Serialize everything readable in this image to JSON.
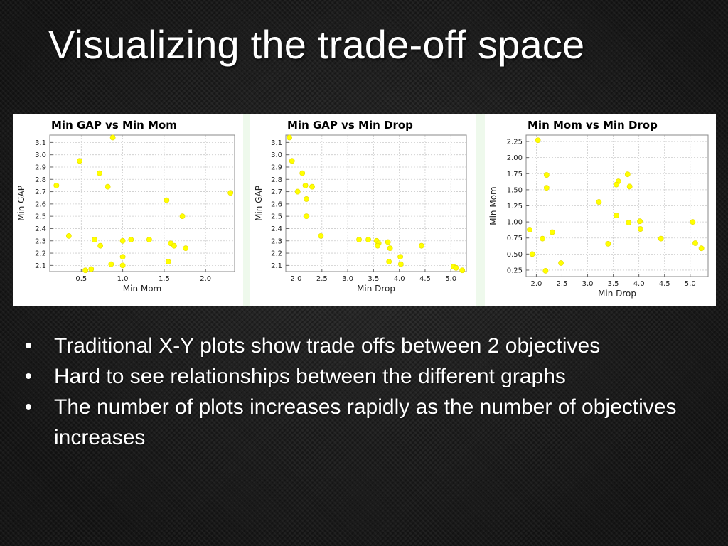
{
  "slide": {
    "title": "Visualizing the trade-off space",
    "bullet_char": "•",
    "bullets": [
      "Traditional X-Y plots show trade offs between 2 objectives",
      "Hard to see relationships between the different graphs",
      "The number of plots increases rapidly as the number of objectives increases"
    ]
  },
  "colors": {
    "background": "#1b1b1b",
    "text": "#ffffff",
    "point": "#ffff00",
    "grid": "#cccccc"
  },
  "chart_data": [
    {
      "type": "scatter",
      "title": "Min GAP vs Min Mom",
      "xlabel": "Min Mom",
      "ylabel": "Min GAP",
      "xlim": [
        0.12,
        2.35
      ],
      "ylim": [
        2.05,
        3.16
      ],
      "xticks": [
        0.5,
        1.0,
        1.5,
        2.0
      ],
      "xtick_labels": [
        "0.5",
        "1.0",
        "1.5",
        "2.0"
      ],
      "yticks": [
        2.1,
        2.2,
        2.3,
        2.4,
        2.5,
        2.6,
        2.7,
        2.8,
        2.9,
        3.0,
        3.1
      ],
      "ytick_labels": [
        "2.1",
        "2.2",
        "2.3",
        "2.4",
        "2.5",
        "2.6",
        "2.7",
        "2.8",
        "2.9",
        "3.0",
        "3.1"
      ],
      "grid": true,
      "x": [
        0.88,
        0.48,
        0.72,
        0.2,
        0.82,
        0.35,
        0.66,
        0.73,
        1.0,
        1.1,
        1.32,
        1.58,
        1.62,
        1.76,
        1.55,
        0.86,
        1.0,
        0.55,
        0.62,
        1.0,
        1.72,
        1.53,
        2.3
      ],
      "y": [
        3.14,
        2.95,
        2.85,
        2.75,
        2.74,
        2.34,
        2.31,
        2.26,
        2.3,
        2.31,
        2.31,
        2.28,
        2.26,
        2.24,
        2.13,
        2.11,
        2.1,
        2.06,
        2.07,
        2.17,
        2.5,
        2.63,
        2.69
      ]
    },
    {
      "type": "scatter",
      "title": "Min GAP vs Min Drop",
      "xlabel": "Min Drop",
      "ylabel": "Min GAP",
      "xlim": [
        1.8,
        5.3
      ],
      "ylim": [
        2.05,
        3.16
      ],
      "xticks": [
        2.0,
        2.5,
        3.0,
        3.5,
        4.0,
        4.5,
        5.0
      ],
      "xtick_labels": [
        "2.0",
        "2.5",
        "3.0",
        "3.5",
        "4.0",
        "4.5",
        "5.0"
      ],
      "yticks": [
        2.1,
        2.2,
        2.3,
        2.4,
        2.5,
        2.6,
        2.7,
        2.8,
        2.9,
        3.0,
        3.1
      ],
      "ytick_labels": [
        "2.1",
        "2.2",
        "2.3",
        "2.4",
        "2.5",
        "2.6",
        "2.7",
        "2.8",
        "2.9",
        "3.0",
        "3.1"
      ],
      "grid": true,
      "x": [
        1.87,
        1.92,
        2.12,
        2.03,
        2.18,
        2.31,
        2.2,
        2.2,
        2.48,
        3.22,
        3.4,
        3.56,
        3.6,
        3.58,
        3.78,
        3.82,
        3.8,
        4.02,
        4.03,
        4.43,
        5.05,
        5.1,
        5.22
      ],
      "y": [
        3.14,
        2.95,
        2.85,
        2.7,
        2.75,
        2.74,
        2.64,
        2.5,
        2.34,
        2.31,
        2.31,
        2.3,
        2.28,
        2.26,
        2.29,
        2.24,
        2.13,
        2.17,
        2.11,
        2.26,
        2.09,
        2.08,
        2.06
      ]
    },
    {
      "type": "scatter",
      "title": "Min Mom vs Min Drop",
      "xlabel": "Min Drop",
      "ylabel": "Min Mom",
      "xlim": [
        1.8,
        5.35
      ],
      "ylim": [
        0.15,
        2.35
      ],
      "xticks": [
        2.0,
        2.5,
        3.0,
        3.5,
        4.0,
        4.5,
        5.0
      ],
      "xtick_labels": [
        "2.0",
        "2.5",
        "3.0",
        "3.5",
        "4.0",
        "4.5",
        "5.0"
      ],
      "yticks": [
        0.25,
        0.5,
        0.75,
        1.0,
        1.25,
        1.5,
        1.75,
        2.0,
        2.25
      ],
      "ytick_labels": [
        "0.25",
        "0.50",
        "0.75",
        "1.00",
        "1.25",
        "1.50",
        "1.75",
        "2.00",
        "2.25"
      ],
      "grid": true,
      "x": [
        2.03,
        2.2,
        2.2,
        3.22,
        3.6,
        3.56,
        3.78,
        3.82,
        3.56,
        4.02,
        3.8,
        4.03,
        5.05,
        1.87,
        1.92,
        2.12,
        2.31,
        2.48,
        2.18,
        3.4,
        4.43,
        5.1,
        5.22
      ],
      "y": [
        2.27,
        1.73,
        1.53,
        1.31,
        1.63,
        1.58,
        1.74,
        1.55,
        1.1,
        1.01,
        0.99,
        0.89,
        1.0,
        0.88,
        0.5,
        0.74,
        0.84,
        0.36,
        0.24,
        0.66,
        0.74,
        0.67,
        0.59
      ]
    }
  ]
}
